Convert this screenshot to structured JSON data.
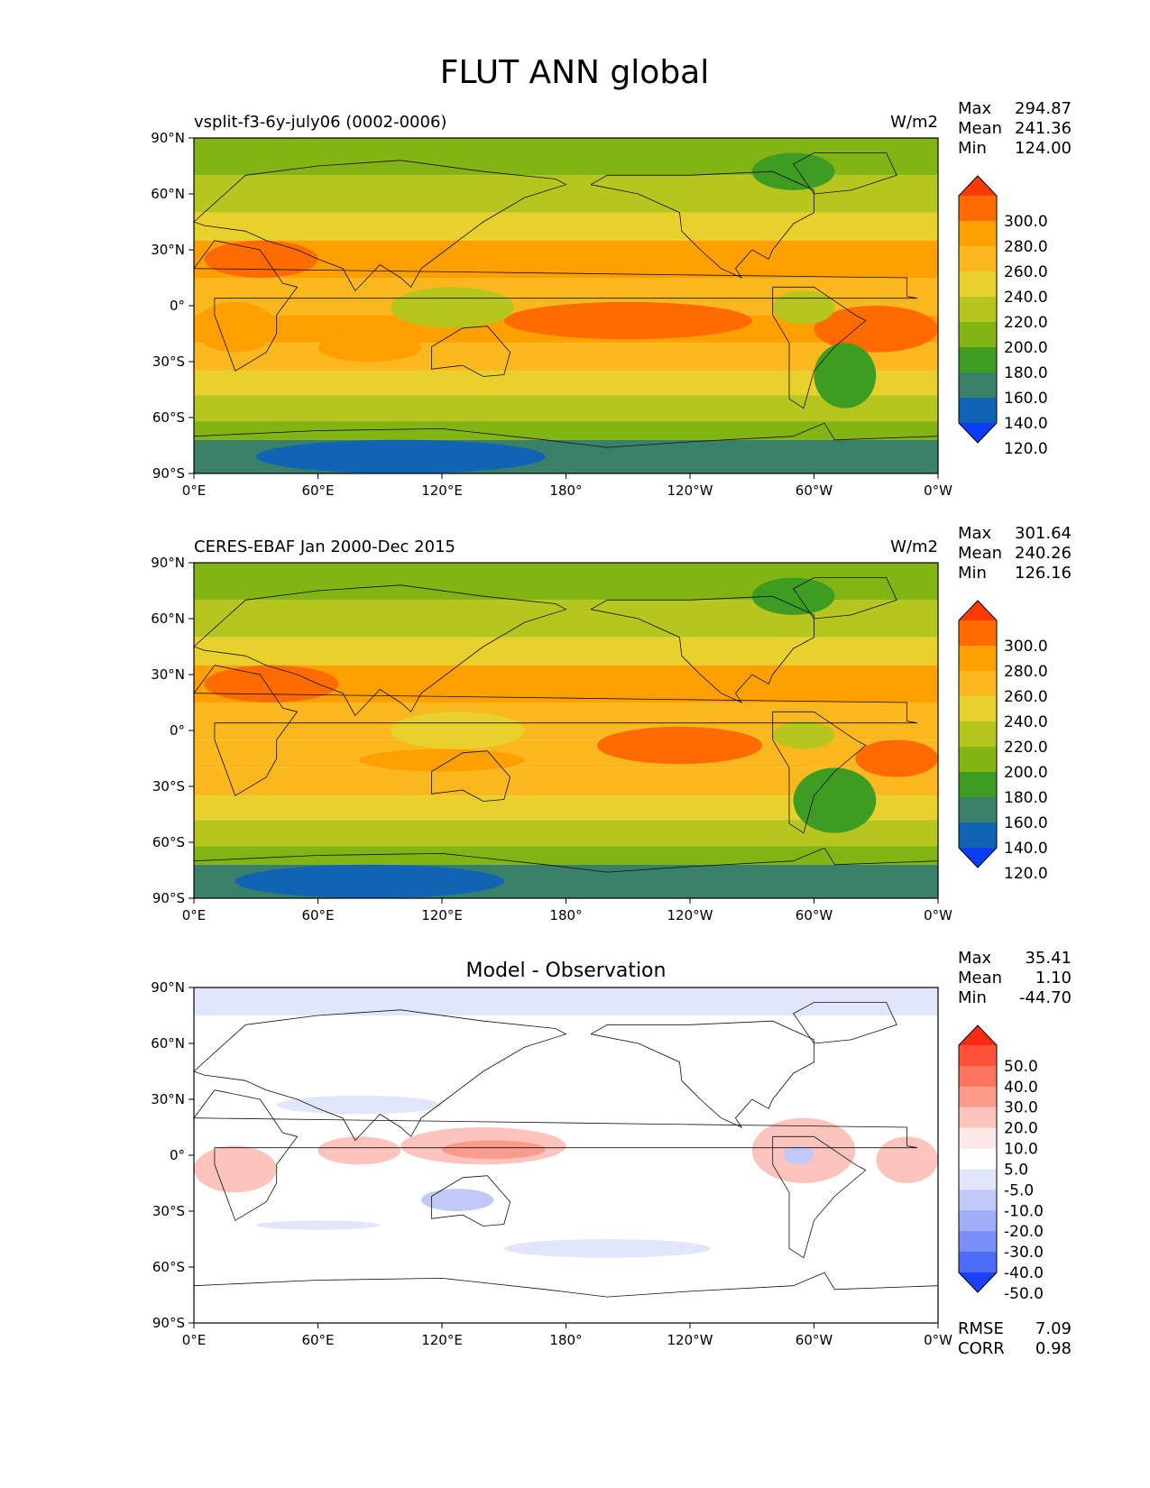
{
  "figure": {
    "title": "FLUT ANN global"
  },
  "chart_data": [
    {
      "type": "heatmap",
      "title": "vsplit-f3-6y-july06 (0002-0006)",
      "units": "W/m2",
      "stats": [
        {
          "label": "Max",
          "value": "294.87"
        },
        {
          "label": "Mean",
          "value": "241.36"
        },
        {
          "label": "Min",
          "value": "124.00"
        }
      ],
      "x_ticks": [
        "0°E",
        "60°E",
        "120°E",
        "180°",
        "120°W",
        "60°W",
        "0°W"
      ],
      "y_ticks": [
        "90°N",
        "60°N",
        "30°N",
        "0°",
        "30°S",
        "60°S",
        "90°S"
      ],
      "xlim": [
        0,
        360
      ],
      "ylim": [
        -90,
        90
      ],
      "colorbar": {
        "labels": [
          "300.0",
          "280.0",
          "260.0",
          "240.0",
          "220.0",
          "200.0",
          "180.0",
          "160.0",
          "140.0",
          "120.0"
        ],
        "colors": [
          "#ff3a00",
          "#ff6b00",
          "#ff9f00",
          "#fbb81e",
          "#e9d12d",
          "#b7c61f",
          "#82b513",
          "#3f9c22",
          "#3a8068",
          "#1164b4",
          "#0a3df7"
        ]
      },
      "zonal_bands": [
        {
          "lat": [
            70,
            90
          ],
          "value": 190
        },
        {
          "lat": [
            50,
            70
          ],
          "value": 205
        },
        {
          "lat": [
            35,
            50
          ],
          "value": 225
        },
        {
          "lat": [
            15,
            35
          ],
          "value": 262
        },
        {
          "lat": [
            -5,
            15
          ],
          "value": 242
        },
        {
          "lat": [
            -20,
            -5
          ],
          "value": 262
        },
        {
          "lat": [
            -35,
            -20
          ],
          "value": 252
        },
        {
          "lat": [
            -48,
            -35
          ],
          "value": 232
        },
        {
          "lat": [
            -62,
            -48
          ],
          "value": 208
        },
        {
          "lat": [
            -72,
            -62
          ],
          "value": 188
        },
        {
          "lat": [
            -90,
            -72
          ],
          "value": 150
        }
      ],
      "features": [
        {
          "lon": [
            150,
            270
          ],
          "lat": [
            -18,
            2
          ],
          "value": 282
        },
        {
          "lon": [
            300,
            360
          ],
          "lat": [
            -25,
            0
          ],
          "value": 282
        },
        {
          "lon": [
            0,
            40
          ],
          "lat": [
            -25,
            2
          ],
          "value": 275
        },
        {
          "lon": [
            5,
            60
          ],
          "lat": [
            15,
            35
          ],
          "value": 282
        },
        {
          "lon": [
            95,
            155
          ],
          "lat": [
            -12,
            10
          ],
          "value": 215
        },
        {
          "lon": [
            280,
            310
          ],
          "lat": [
            -10,
            8
          ],
          "value": 215
        },
        {
          "lon": [
            60,
            110
          ],
          "lat": [
            -30,
            -15
          ],
          "value": 278
        },
        {
          "lon": [
            300,
            330
          ],
          "lat": [
            -55,
            -20
          ],
          "value": 165
        },
        {
          "lon": [
            30,
            170
          ],
          "lat": [
            -90,
            -72
          ],
          "value": 135
        },
        {
          "lon": [
            270,
            310
          ],
          "lat": [
            62,
            82
          ],
          "value": 175
        }
      ]
    },
    {
      "type": "heatmap",
      "title": "CERES-EBAF Jan 2000-Dec 2015",
      "units": "W/m2",
      "stats": [
        {
          "label": "Max",
          "value": "301.64"
        },
        {
          "label": "Mean",
          "value": "240.26"
        },
        {
          "label": "Min",
          "value": "126.16"
        }
      ],
      "x_ticks": [
        "0°E",
        "60°E",
        "120°E",
        "180°",
        "120°W",
        "60°W",
        "0°W"
      ],
      "y_ticks": [
        "90°N",
        "60°N",
        "30°N",
        "0°",
        "30°S",
        "60°S",
        "90°S"
      ],
      "xlim": [
        0,
        360
      ],
      "ylim": [
        -90,
        90
      ],
      "colorbar": {
        "labels": [
          "300.0",
          "280.0",
          "260.0",
          "240.0",
          "220.0",
          "200.0",
          "180.0",
          "160.0",
          "140.0",
          "120.0"
        ],
        "colors": [
          "#ff3a00",
          "#ff6b00",
          "#ff9f00",
          "#fbb81e",
          "#e9d12d",
          "#b7c61f",
          "#82b513",
          "#3f9c22",
          "#3a8068",
          "#1164b4",
          "#0a3df7"
        ]
      },
      "zonal_bands": [
        {
          "lat": [
            70,
            90
          ],
          "value": 190
        },
        {
          "lat": [
            50,
            70
          ],
          "value": 205
        },
        {
          "lat": [
            35,
            50
          ],
          "value": 228
        },
        {
          "lat": [
            15,
            35
          ],
          "value": 262
        },
        {
          "lat": [
            -5,
            15
          ],
          "value": 245
        },
        {
          "lat": [
            -20,
            -5
          ],
          "value": 258
        },
        {
          "lat": [
            -35,
            -20
          ],
          "value": 252
        },
        {
          "lat": [
            -48,
            -35
          ],
          "value": 235
        },
        {
          "lat": [
            -62,
            -48
          ],
          "value": 210
        },
        {
          "lat": [
            -72,
            -62
          ],
          "value": 188
        },
        {
          "lat": [
            -90,
            -72
          ],
          "value": 150
        }
      ],
      "features": [
        {
          "lon": [
            195,
            275
          ],
          "lat": [
            -18,
            2
          ],
          "value": 282
        },
        {
          "lon": [
            320,
            360
          ],
          "lat": [
            -25,
            -5
          ],
          "value": 282
        },
        {
          "lon": [
            5,
            70
          ],
          "lat": [
            15,
            35
          ],
          "value": 285
        },
        {
          "lon": [
            80,
            160
          ],
          "lat": [
            -22,
            -10
          ],
          "value": 275
        },
        {
          "lon": [
            95,
            160
          ],
          "lat": [
            -10,
            10
          ],
          "value": 220
        },
        {
          "lon": [
            280,
            310
          ],
          "lat": [
            -10,
            5
          ],
          "value": 218
        },
        {
          "lon": [
            290,
            330
          ],
          "lat": [
            -55,
            -20
          ],
          "value": 165
        },
        {
          "lon": [
            20,
            150
          ],
          "lat": [
            -90,
            -72
          ],
          "value": 135
        },
        {
          "lon": [
            270,
            310
          ],
          "lat": [
            62,
            82
          ],
          "value": 175
        }
      ]
    },
    {
      "type": "heatmap",
      "title": "Model - Observation",
      "units": "",
      "stats": [
        {
          "label": "Max",
          "value": "35.41"
        },
        {
          "label": "Mean",
          "value": "1.10"
        },
        {
          "label": "Min",
          "value": "-44.70"
        }
      ],
      "x_ticks": [
        "0°E",
        "60°E",
        "120°E",
        "180°",
        "120°W",
        "60°W",
        "0°W"
      ],
      "y_ticks": [
        "90°N",
        "60°N",
        "30°N",
        "0°",
        "30°S",
        "60°S",
        "90°S"
      ],
      "xlim": [
        0,
        360
      ],
      "ylim": [
        -90,
        90
      ],
      "colorbar": {
        "labels": [
          "50.0",
          "40.0",
          "30.0",
          "20.0",
          "10.0",
          "5.0",
          "-5.0",
          "-10.0",
          "-20.0",
          "-30.0",
          "-40.0",
          "-50.0"
        ],
        "colors": [
          "#ff2a10",
          "#ff5238",
          "#fb7460",
          "#fb9b8c",
          "#fcc4bc",
          "#feebe8",
          "#ffffff",
          "#e2e6fb",
          "#c0c9f8",
          "#9eadf6",
          "#7a8ff5",
          "#4c6cf7",
          "#1c3ff9"
        ]
      },
      "zonal_bands": [
        {
          "lat": [
            75,
            90
          ],
          "value": -7
        },
        {
          "lat": [
            -90,
            75
          ],
          "value": 0
        }
      ],
      "features": [
        {
          "lon": [
            100,
            180
          ],
          "lat": [
            -5,
            15
          ],
          "value": 15
        },
        {
          "lon": [
            120,
            170
          ],
          "lat": [
            -2,
            8
          ],
          "value": 25
        },
        {
          "lon": [
            60,
            100
          ],
          "lat": [
            -5,
            10
          ],
          "value": 12
        },
        {
          "lon": [
            270,
            320
          ],
          "lat": [
            -15,
            20
          ],
          "value": 12
        },
        {
          "lon": [
            285,
            300
          ],
          "lat": [
            -5,
            5
          ],
          "value": -20
        },
        {
          "lon": [
            110,
            145
          ],
          "lat": [
            -30,
            -18
          ],
          "value": -12
        },
        {
          "lon": [
            150,
            250
          ],
          "lat": [
            -55,
            -45
          ],
          "value": -7
        },
        {
          "lon": [
            30,
            90
          ],
          "lat": [
            -40,
            -35
          ],
          "value": -7
        },
        {
          "lon": [
            0,
            40
          ],
          "lat": [
            -20,
            5
          ],
          "value": 12
        },
        {
          "lon": [
            330,
            360
          ],
          "lat": [
            -15,
            10
          ],
          "value": 12
        },
        {
          "lon": [
            40,
            120
          ],
          "lat": [
            22,
            32
          ],
          "value": -7
        }
      ],
      "footer_stats": [
        {
          "label": "RMSE",
          "value": "7.09"
        },
        {
          "label": "CORR",
          "value": "0.98"
        }
      ]
    }
  ]
}
